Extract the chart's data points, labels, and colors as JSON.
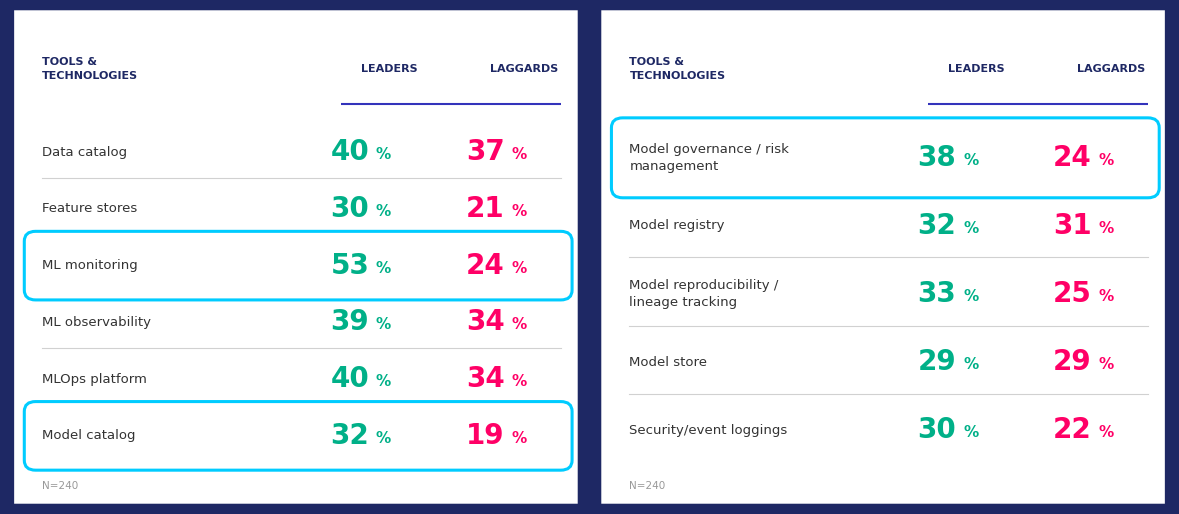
{
  "background_color": "#1e2864",
  "panel_bg": "#ffffff",
  "leader_color": "#00b088",
  "laggard_color": "#ff0066",
  "header_color": "#1e2864",
  "header_underline_color": "#3333bb",
  "separator_color": "#cccccc",
  "highlight_box_color": "#00ccff",
  "note_color": "#999999",
  "label_color": "#333333",
  "left_panel": {
    "header": [
      "TOOLS &",
      "TECHNOLOGIES"
    ],
    "col_leaders": "LEADERS",
    "col_laggards": "LAGGARDS",
    "rows": [
      {
        "label": "Data catalog",
        "leaders": "40",
        "laggards": "37",
        "highlight": false
      },
      {
        "label": "Feature stores",
        "leaders": "30",
        "laggards": "21",
        "highlight": false
      },
      {
        "label": "ML monitoring",
        "leaders": "53",
        "laggards": "24",
        "highlight": true
      },
      {
        "label": "ML observability",
        "leaders": "39",
        "laggards": "34",
        "highlight": false
      },
      {
        "label": "MLOps platform",
        "leaders": "40",
        "laggards": "34",
        "highlight": false
      },
      {
        "label": "Model catalog",
        "leaders": "32",
        "laggards": "19",
        "highlight": true
      }
    ],
    "note": "N=240"
  },
  "right_panel": {
    "header": [
      "TOOLS &",
      "TECHNOLOGIES"
    ],
    "col_leaders": "LEADERS",
    "col_laggards": "LAGGARDS",
    "rows": [
      {
        "label": "Model governance / risk\nmanagement",
        "leaders": "38",
        "laggards": "24",
        "highlight": true,
        "two_line": true
      },
      {
        "label": "Model registry",
        "leaders": "32",
        "laggards": "31",
        "highlight": false,
        "two_line": false
      },
      {
        "label": "Model reproducibility /\nlineage tracking",
        "leaders": "33",
        "laggards": "25",
        "highlight": false,
        "two_line": true
      },
      {
        "label": "Model store",
        "leaders": "29",
        "laggards": "29",
        "highlight": false,
        "two_line": false
      },
      {
        "label": "Security/event loggings",
        "leaders": "30",
        "laggards": "22",
        "highlight": false,
        "two_line": false
      }
    ],
    "note": "N=240"
  }
}
